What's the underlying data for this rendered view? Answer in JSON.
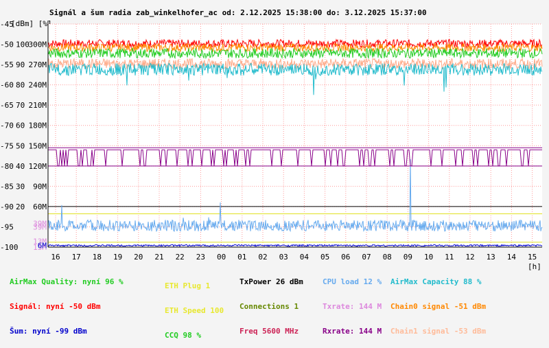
{
  "chart_data": {
    "type": "line",
    "title": "Signál a šum radia zab_winkelhofer_ac od: 2.12.2025 15:38:00 do: 3.12.2025 15:37:00",
    "ylabel_left": "[dBm] [%]",
    "xlabel": "[h]",
    "y_dbm_ticks": [
      "-45",
      "-50",
      "-55",
      "-60",
      "-65",
      "-70",
      "-75",
      "-80",
      "-85",
      "-90",
      "-95",
      "-100"
    ],
    "y_pct_ticks": [
      "",
      "100",
      "90",
      "80",
      "70",
      "60",
      "50",
      "40",
      "30",
      "20",
      "",
      ""
    ],
    "y_rate_ticks": [
      "",
      "300M",
      "270M",
      "240M",
      "210M",
      "180M",
      "150M",
      "120M",
      "90M",
      "60M",
      "39M",
      "13M",
      "6M"
    ],
    "x_ticks": [
      "16",
      "17",
      "18",
      "19",
      "20",
      "21",
      "22",
      "23",
      "00",
      "01",
      "02",
      "03",
      "04",
      "05",
      "06",
      "07",
      "08",
      "09",
      "10",
      "11",
      "12",
      "13",
      "14",
      "15"
    ],
    "ylim": [
      -100,
      -45
    ],
    "hlines": [
      {
        "y": -75.5,
        "color": "#880088"
      },
      {
        "y": -80,
        "color": "#880088"
      },
      {
        "y": -90,
        "color": "#000000"
      },
      {
        "y": -91.8,
        "color": "#e0e020"
      },
      {
        "y": -98.8,
        "color": "#e0e020"
      }
    ],
    "series": [
      {
        "name": "Signál",
        "color": "#ff0000",
        "level": -49.8,
        "noise": 1.0
      },
      {
        "name": "Chain0 signal",
        "color": "#ff8800",
        "level": -50.8,
        "noise": 1.0
      },
      {
        "name": "CCQ",
        "color": "#22cc22",
        "level": -52.2,
        "noise": 1.2
      },
      {
        "name": "Chain1 signal",
        "color": "#ffaa88",
        "level": -54.8,
        "noise": 1.3
      },
      {
        "name": "AirMax Capacity",
        "color": "#22bbcc",
        "level": -56.2,
        "noise": 1.5
      },
      {
        "name": "CPU load",
        "color": "#66aaee",
        "level": -94.7,
        "noise": 1.4
      },
      {
        "name": "Connections",
        "color": "#880088",
        "level": -76,
        "noise": 0
      },
      {
        "name": "Šum",
        "color": "#0000cc",
        "level": -99.6,
        "noise": 0.2
      }
    ]
  },
  "legend": {
    "col1": [
      "AirMax Quality: nyní 96 %",
      "Signál: nyní -50 dBm",
      "Šum: nyní -99 dBm"
    ],
    "col2": [
      "ETH Plug 1",
      "ETH Speed 100",
      "CCQ 98 %"
    ],
    "col3": [
      "TxPower 26 dBm",
      "Connections 1",
      "Freq 5600 MHz"
    ],
    "col4": [
      "CPU load 12 %",
      "Txrate: 144 M",
      "Rxrate: 144 M"
    ],
    "col5": [
      "AirMax Capacity 88 %",
      "Chain0 signal -51 dBm",
      "Chain1 signal -53 dBm"
    ],
    "colors": {
      "col1": [
        "#22cc22",
        "#ff0000",
        "#0000cc"
      ],
      "col2": [
        "#e8e830",
        "#e8e830",
        "#22cc22"
      ],
      "col3": [
        "#000000",
        "#668800",
        "#cc2255"
      ],
      "col4": [
        "#66aaee",
        "#dd88dd",
        "#880088"
      ],
      "col5": [
        "#22bbcc",
        "#ff8800",
        "#ffbb99"
      ]
    }
  }
}
